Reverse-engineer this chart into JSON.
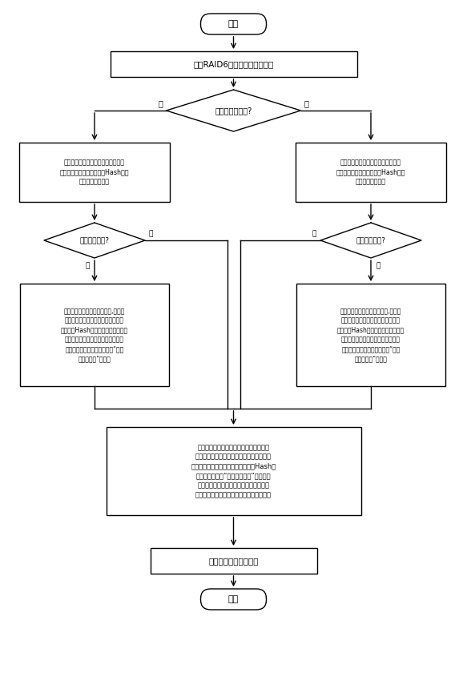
{
  "title": "开始",
  "end_text": "结束",
  "box1": "根据RAID6阵列结构分解写请求",
  "diamond1": "是否采用条码写?",
  "diamond1_yes": "是",
  "diamond1_no": "否",
  "box2_left": "针对校验条带上所有已没不被更新的\n数据块，分别查询其是否在Hash链表\n中存在对应的条目",
  "box2_right": "针对校验条带上所有此次将被更新的\n数据块，分别查询其是否在Hash链表\n中存在对应的条目",
  "diamond2_left": "条目是否存在?",
  "diamond2_right": "条目是否存在?",
  "diamond2_yes": "是",
  "diamond2_no": "否",
  "box3_left": "读取出数据块对应的原始数据,并放入\n日志缓冲区（若缓冲区满则刷回日志\n盘）。在Hash链表中创建数据块对应\n的条目，并将即才写入的原始数据在\n日志盘中的地址记录在条目的“初始\n数据起始址”字段中",
  "box3_right": "读取出数据块对应的原始数据,并放入\n日志缓冲区（若缓冲区满则刷回日志\n盘）。在Hash链表中创建数据块对应\n的条目，并将即才写入的原始数据在\n日志盘中的地址记录在条目的“初始\n数据起始址”字段中",
  "box4": "针对校验条带上此次被变更的数据块，将\n其要写入的新数据放入日志缓冲区（若缓冲\n区满则刷回日志盘）。并将数据块在Hash链\n表中对应条目的“最新数据地址”字段更新\n为刚才写入的新数据在日志盘中的地址。\n（若数据块对应条目不存在则先创建条目）",
  "box5": "写入新数据至数据磁盘",
  "bg_color": "#ffffff",
  "box_color": "#ffffff",
  "border_color": "#000000",
  "text_color": "#000000"
}
